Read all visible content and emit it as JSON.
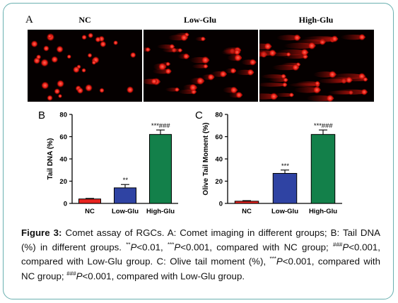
{
  "panel_a": {
    "letter": "A",
    "groups": [
      "NC",
      "Low-Glu",
      "High-Glu"
    ]
  },
  "chart_data": [
    {
      "type": "bar",
      "panel": "B",
      "categories": [
        "NC",
        "Low-Glu",
        "High-Glu"
      ],
      "values": [
        4,
        14,
        62
      ],
      "errors": [
        0.5,
        3,
        4
      ],
      "annotations": [
        "",
        "**",
        "***###"
      ],
      "colors": [
        "#e8231f",
        "#2f43a3",
        "#13804a"
      ],
      "xlabel": "",
      "ylabel": "Tail DNA (%)",
      "ylim": [
        0,
        80
      ],
      "yticks": [
        "0",
        "20",
        "40",
        "60",
        "80"
      ]
    },
    {
      "type": "bar",
      "panel": "C",
      "categories": [
        "NC",
        "Low-Glu",
        "High-Glu"
      ],
      "values": [
        2,
        27,
        62
      ],
      "errors": [
        0.5,
        3,
        4
      ],
      "annotations": [
        "",
        "***",
        "***###"
      ],
      "colors": [
        "#e8231f",
        "#2f43a3",
        "#13804a"
      ],
      "xlabel": "",
      "ylabel": "Olive Tail Moment (%)",
      "ylim": [
        0,
        80
      ],
      "yticks": [
        "0",
        "20",
        "40",
        "60",
        "80"
      ]
    }
  ],
  "caption": {
    "label": "Figure 3:",
    "text": " Comet assay of RGCs. A: Comet imaging in different groups; B: Tail DNA (%) in different groups. ",
    "s1_sup": "**",
    "s1_text": "P",
    "s1_rest": "<0.01, ",
    "s2_sup": "***",
    "s2_text": "P",
    "s2_rest": "<0.001, compared with NC group; ",
    "s3_sup": "###",
    "s3_text": "P",
    "s3_rest": "<0.001, compared with Low-Glu group. C: Olive tail moment (%), ",
    "s4_sup": "***",
    "s4_text": "P",
    "s4_rest": "<0.001, compared with NC group; ",
    "s5_sup": "###",
    "s5_text": "P",
    "s5_rest": "<0.001, compared with Low-Glu group."
  }
}
